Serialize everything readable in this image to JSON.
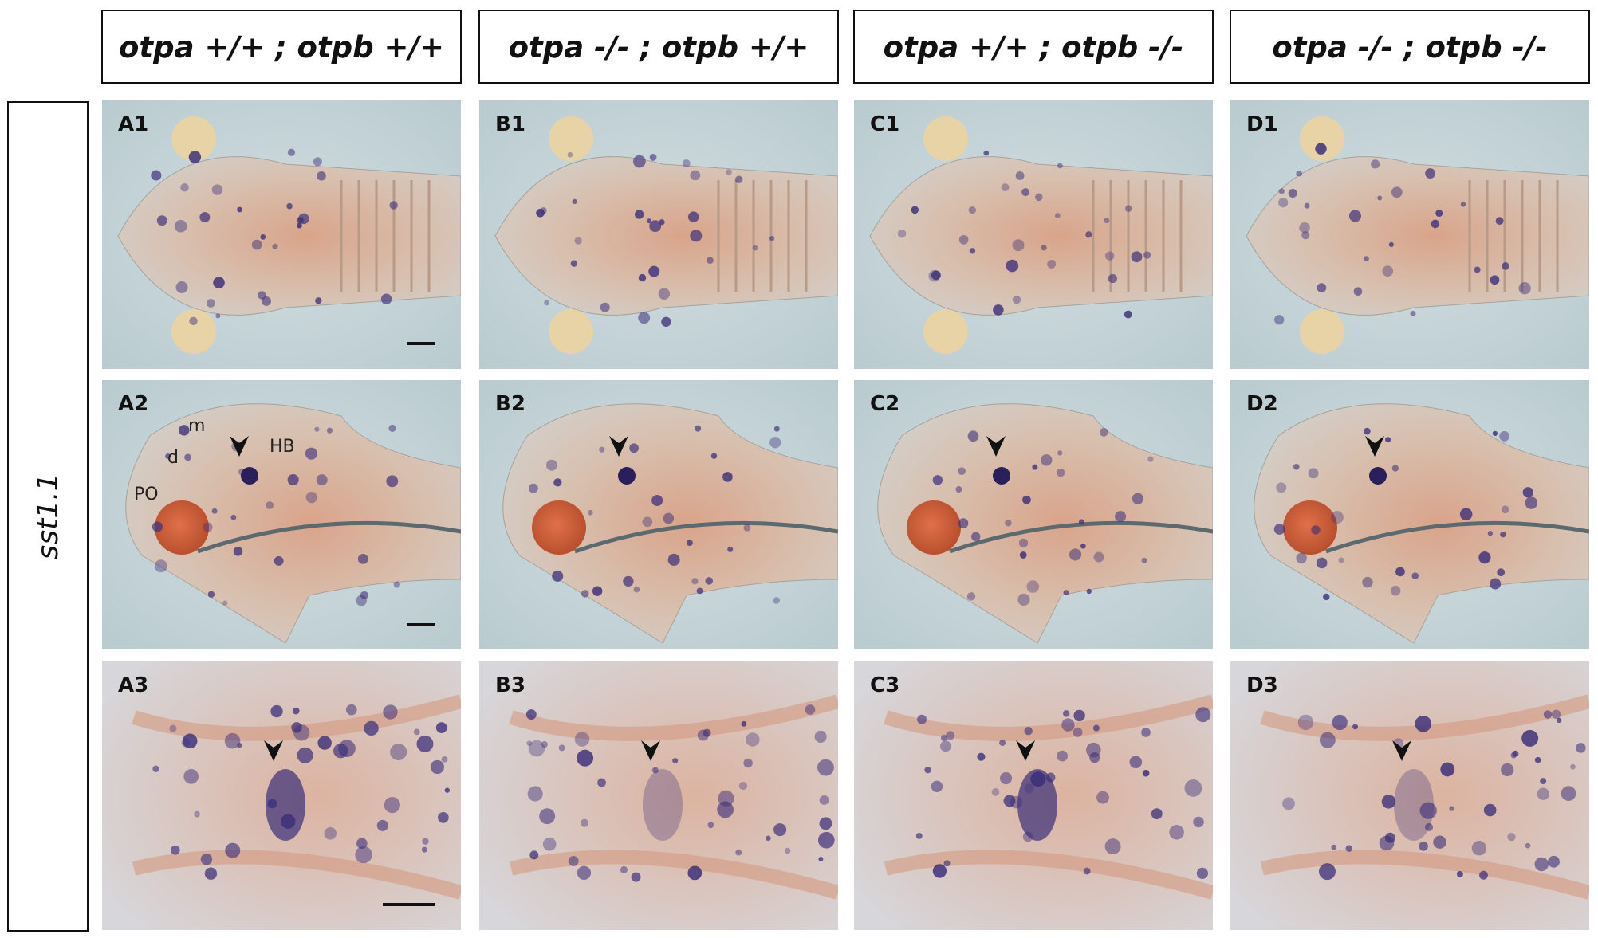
{
  "column_headers": [
    "otpa +/+ ; otpb +/+",
    "otpa -/- ; otpb +/+",
    "otpa +/+ ; otpb -/-",
    "otpa -/- ; otpb -/-"
  ],
  "row_label": "sst1.1",
  "panels": [
    [
      "A1",
      "B1",
      "C1",
      "D1"
    ],
    [
      "A2",
      "B2",
      "C2",
      "D2"
    ],
    [
      "A3",
      "B3",
      "C3",
      "D3"
    ]
  ],
  "annotations": [
    "m",
    "d",
    "PO",
    "HB"
  ]
}
